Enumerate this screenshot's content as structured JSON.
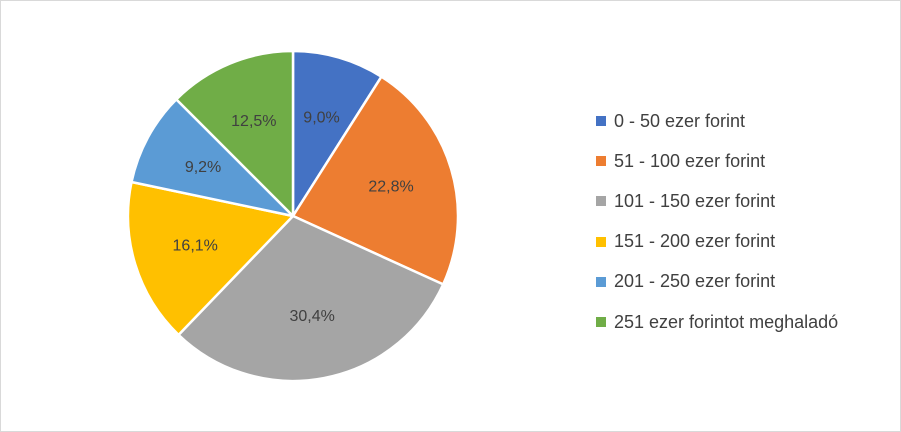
{
  "chart_data": {
    "type": "pie",
    "categories": [
      "0 - 50 ezer forint",
      "51 - 100 ezer forint",
      "101 - 150 ezer forint",
      "151 - 200 ezer forint",
      "201 - 250 ezer forint",
      "251 ezer forintot meghaladó"
    ],
    "values": [
      9.0,
      22.8,
      30.4,
      16.1,
      9.2,
      12.5
    ],
    "data_labels": [
      "9,0%",
      "22,8%",
      "30,4%",
      "16,1%",
      "9,2%",
      "12,5%"
    ],
    "colors": [
      "#4472C4",
      "#ED7D31",
      "#A5A5A5",
      "#FFC000",
      "#5B9BD5",
      "#70AD47"
    ],
    "legend_position": "right",
    "start_angle": "12 o'clock",
    "direction": "clockwise"
  }
}
